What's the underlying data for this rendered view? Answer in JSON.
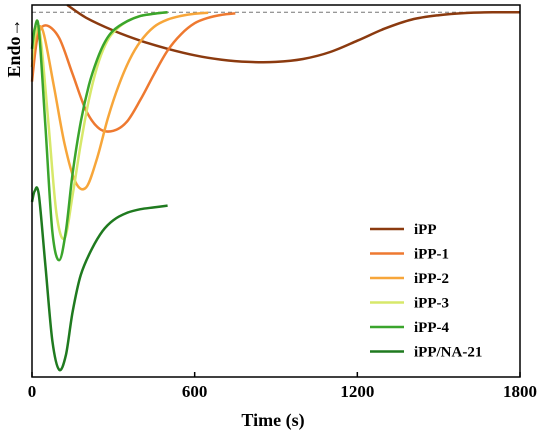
{
  "chart_data": {
    "type": "line",
    "xlabel": "Time (s)",
    "ylabel": "Endo→",
    "xlim": [
      0,
      1800
    ],
    "ylim": [
      -1,
      0.02
    ],
    "xticks": [
      0,
      600,
      1200,
      1800
    ],
    "y_tick_labels": false,
    "grid": false,
    "legend_position": "bottom-right",
    "reference_line": {
      "style": "dashed",
      "y": 0,
      "color": "#777777"
    },
    "series": [
      {
        "name": "iPP",
        "color": "#8b3a0f",
        "x": [
          130,
          200,
          300,
          400,
          500,
          600,
          700,
          800,
          900,
          1000,
          1100,
          1200,
          1300,
          1400,
          1500,
          1600,
          1700,
          1800
        ],
        "y": [
          0.02,
          -0.015,
          -0.05,
          -0.078,
          -0.1,
          -0.118,
          -0.13,
          -0.136,
          -0.136,
          -0.128,
          -0.109,
          -0.078,
          -0.045,
          -0.02,
          -0.008,
          -0.002,
          0,
          0
        ]
      },
      {
        "name": "iPP-1",
        "color": "#ee7930",
        "x": [
          0,
          20,
          50,
          100,
          150,
          200,
          250,
          300,
          350,
          400,
          450,
          500,
          550,
          600,
          650,
          700,
          750
        ],
        "y": [
          -0.19,
          -0.07,
          -0.036,
          -0.07,
          -0.17,
          -0.27,
          -0.32,
          -0.325,
          -0.3,
          -0.24,
          -0.17,
          -0.105,
          -0.06,
          -0.03,
          -0.015,
          -0.007,
          -0.003
        ]
      },
      {
        "name": "iPP-2",
        "color": "#f7a63a",
        "x": [
          0,
          15,
          40,
          80,
          120,
          160,
          200,
          240,
          280,
          320,
          360,
          400,
          450,
          500,
          550,
          600,
          650
        ],
        "y": [
          -0.15,
          -0.06,
          -0.05,
          -0.2,
          -0.36,
          -0.465,
          -0.48,
          -0.4,
          -0.29,
          -0.2,
          -0.13,
          -0.08,
          -0.04,
          -0.02,
          -0.01,
          -0.004,
          -0.001
        ]
      },
      {
        "name": "iPP-3",
        "color": "#d7e86a",
        "x": [
          0,
          12,
          30,
          60,
          90,
          120,
          150,
          180,
          210,
          240,
          270,
          300,
          350,
          400,
          450,
          500
        ],
        "y": [
          -0.13,
          -0.06,
          -0.06,
          -0.3,
          -0.55,
          -0.62,
          -0.5,
          -0.36,
          -0.24,
          -0.15,
          -0.09,
          -0.055,
          -0.025,
          -0.01,
          -0.004,
          0
        ]
      },
      {
        "name": "iPP-4",
        "color": "#3aa52c",
        "x": [
          0,
          10,
          25,
          50,
          75,
          100,
          125,
          150,
          180,
          210,
          240,
          270,
          300,
          350,
          400,
          450,
          500
        ],
        "y": [
          -0.1,
          -0.045,
          -0.045,
          -0.32,
          -0.6,
          -0.68,
          -0.6,
          -0.44,
          -0.3,
          -0.2,
          -0.13,
          -0.08,
          -0.05,
          -0.025,
          -0.01,
          -0.004,
          0
        ]
      },
      {
        "name": "iPP/NA-21",
        "color": "#1f7a1f",
        "x": [
          0,
          10,
          25,
          50,
          75,
          100,
          125,
          150,
          180,
          220,
          260,
          300,
          350,
          400,
          450,
          500
        ],
        "y": [
          -0.52,
          -0.49,
          -0.5,
          -0.7,
          -0.9,
          -0.98,
          -0.94,
          -0.82,
          -0.72,
          -0.65,
          -0.6,
          -0.57,
          -0.55,
          -0.54,
          -0.535,
          -0.53
        ]
      }
    ]
  }
}
